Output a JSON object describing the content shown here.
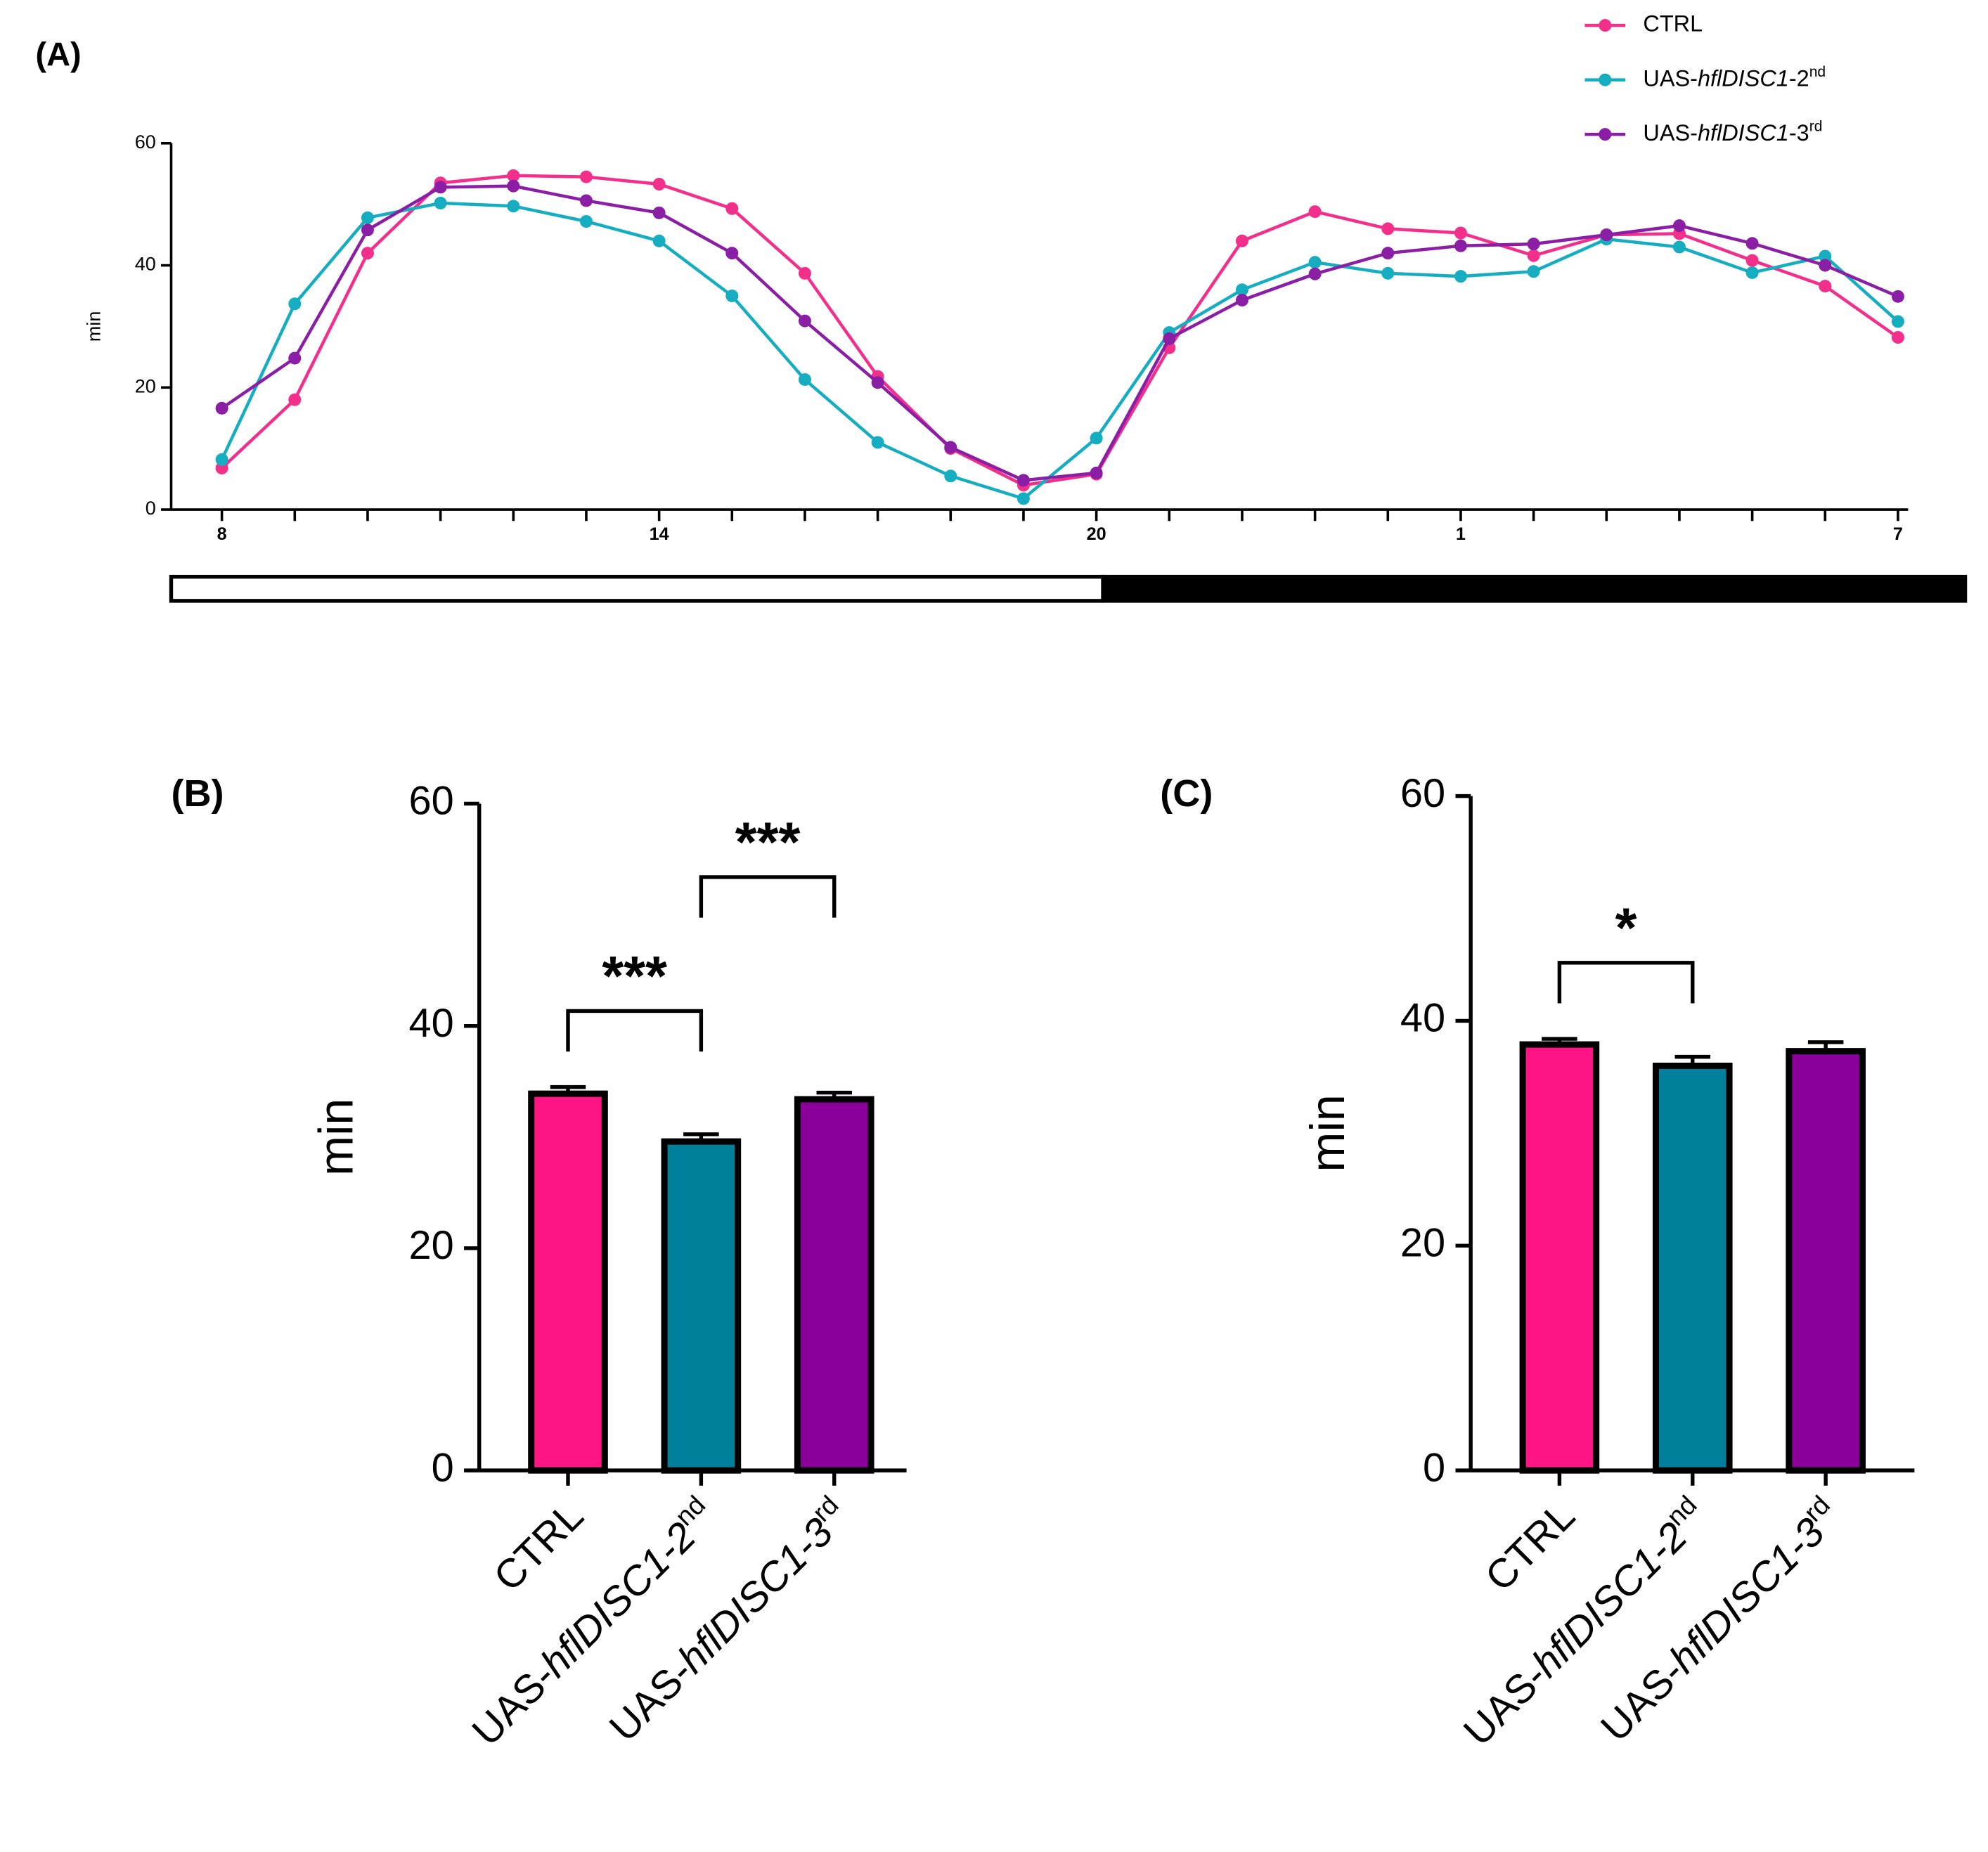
{
  "chart_data": [
    {
      "type": "line",
      "title": "(A)",
      "ylabel": "min",
      "categories": [
        "8",
        null,
        null,
        null,
        null,
        null,
        "14",
        null,
        null,
        null,
        null,
        null,
        "20",
        null,
        null,
        null,
        null,
        "1",
        null,
        null,
        null,
        null,
        null,
        "7"
      ],
      "ylim": [
        0,
        60
      ],
      "yticks": [
        0,
        20,
        40,
        60
      ],
      "series": [
        {
          "name": "CTRL",
          "color": "#f2308c",
          "values": [
            6.8,
            18,
            42,
            53.5,
            54.7,
            54.5,
            53.3,
            49.3,
            38.7,
            21.8,
            10,
            4,
            5.8,
            26.5,
            44,
            48.8,
            46,
            45.3,
            41.6,
            45,
            45.2,
            40.8,
            36.6,
            28.2
          ]
        },
        {
          "name": "UAS-hflDISC1-2nd",
          "color": "#17adc0",
          "values": [
            8.2,
            33.7,
            47.8,
            50.2,
            49.7,
            47.2,
            44,
            35,
            21.3,
            11,
            5.5,
            1.8,
            11.7,
            29,
            36,
            40.5,
            38.7,
            38.2,
            39,
            44.3,
            43,
            38.8,
            41.5,
            30.8
          ]
        },
        {
          "name": "UAS-hflDISC1-3rd",
          "color": "#8a1fa6",
          "values": [
            16.6,
            24.8,
            45.8,
            52.8,
            53,
            50.6,
            48.6,
            42,
            30.9,
            20.8,
            10.2,
            4.8,
            6,
            28,
            34.3,
            38.6,
            42,
            43.2,
            43.5,
            45,
            46.5,
            43.6,
            40,
            34.9
          ]
        }
      ]
    },
    {
      "type": "bar",
      "title": "(B)",
      "ylabel": "min",
      "categories": [
        "CTRL",
        "UAS-hflDISC1-2nd",
        "UAS-hflDISC1-3rd"
      ],
      "values": [
        33.9,
        29.6,
        33.4
      ],
      "errors": [
        0.6,
        0.65,
        0.6
      ],
      "colors": [
        "#ff1486",
        "#00809a",
        "#8b0099"
      ],
      "ylim": [
        0,
        60
      ],
      "yticks": [
        0,
        20,
        40,
        60
      ],
      "annotations": [
        {
          "text": "***",
          "from": 0,
          "to": 1
        },
        {
          "text": "***",
          "from": 1,
          "to": 2
        }
      ]
    },
    {
      "type": "bar",
      "title": "(C)",
      "ylabel": "min",
      "categories": [
        "CTRL",
        "UAS-hflDISC1-2nd",
        "UAS-hflDISC1-3rd"
      ],
      "values": [
        37.9,
        36.0,
        37.3
      ],
      "errors": [
        0.5,
        0.8,
        0.8
      ],
      "colors": [
        "#ff1486",
        "#00809a",
        "#8b0099"
      ],
      "ylim": [
        0,
        60
      ],
      "yticks": [
        0,
        20,
        40,
        60
      ],
      "annotations": [
        {
          "text": "*",
          "from": 0,
          "to": 1
        }
      ]
    }
  ]
}
